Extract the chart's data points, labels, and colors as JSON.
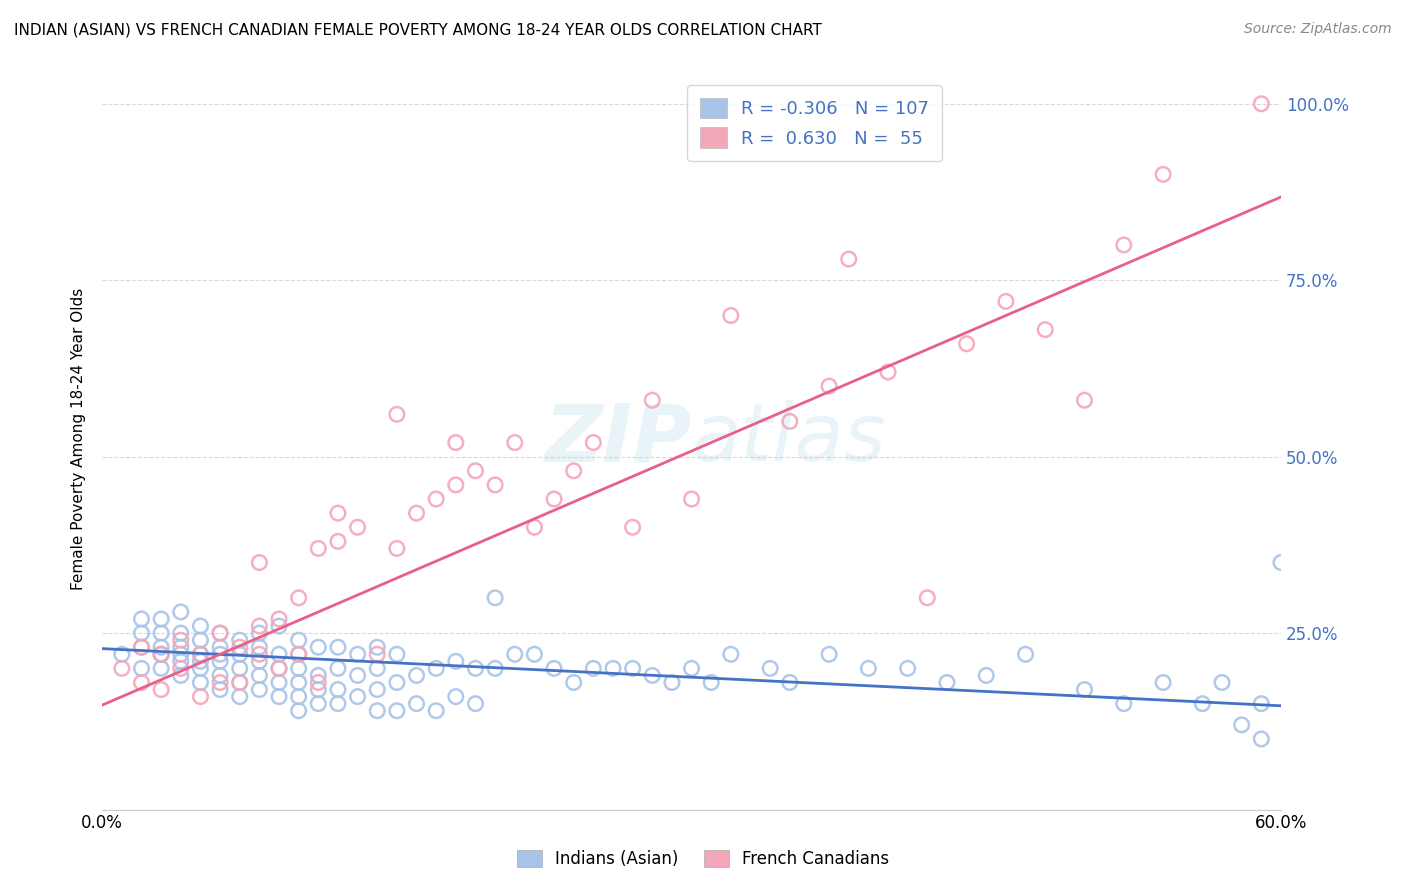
{
  "title": "INDIAN (ASIAN) VS FRENCH CANADIAN FEMALE POVERTY AMONG 18-24 YEAR OLDS CORRELATION CHART",
  "source": "Source: ZipAtlas.com",
  "ylabel": "Female Poverty Among 18-24 Year Olds",
  "xlim": [
    0.0,
    0.6
  ],
  "ylim": [
    0.0,
    1.05
  ],
  "blue_color": "#a8c4e8",
  "pink_color": "#f4a7b9",
  "blue_line_color": "#4472c4",
  "pink_line_color": "#e8608a",
  "legend_r_blue": "-0.306",
  "legend_n_blue": "107",
  "legend_r_pink": "0.630",
  "legend_n_pink": "55",
  "watermark": "ZIPatlas",
  "blue_intercept": 0.228,
  "blue_slope": -0.135,
  "pink_intercept": 0.148,
  "pink_slope": 1.2,
  "blue_scatter_x": [
    0.01,
    0.02,
    0.02,
    0.02,
    0.02,
    0.03,
    0.03,
    0.03,
    0.03,
    0.03,
    0.03,
    0.04,
    0.04,
    0.04,
    0.04,
    0.04,
    0.04,
    0.05,
    0.05,
    0.05,
    0.05,
    0.05,
    0.05,
    0.06,
    0.06,
    0.06,
    0.06,
    0.06,
    0.06,
    0.07,
    0.07,
    0.07,
    0.07,
    0.07,
    0.08,
    0.08,
    0.08,
    0.08,
    0.08,
    0.09,
    0.09,
    0.09,
    0.09,
    0.09,
    0.1,
    0.1,
    0.1,
    0.1,
    0.1,
    0.1,
    0.11,
    0.11,
    0.11,
    0.11,
    0.12,
    0.12,
    0.12,
    0.12,
    0.13,
    0.13,
    0.13,
    0.14,
    0.14,
    0.14,
    0.14,
    0.15,
    0.15,
    0.15,
    0.16,
    0.16,
    0.17,
    0.17,
    0.18,
    0.18,
    0.19,
    0.19,
    0.2,
    0.2,
    0.21,
    0.22,
    0.23,
    0.24,
    0.25,
    0.26,
    0.27,
    0.28,
    0.29,
    0.3,
    0.31,
    0.32,
    0.34,
    0.35,
    0.37,
    0.39,
    0.41,
    0.43,
    0.45,
    0.47,
    0.5,
    0.52,
    0.54,
    0.56,
    0.57,
    0.58,
    0.59,
    0.59,
    0.6
  ],
  "blue_scatter_y": [
    0.22,
    0.2,
    0.23,
    0.25,
    0.27,
    0.2,
    0.22,
    0.23,
    0.25,
    0.27,
    0.22,
    0.19,
    0.21,
    0.23,
    0.25,
    0.28,
    0.22,
    0.18,
    0.2,
    0.22,
    0.24,
    0.26,
    0.21,
    0.17,
    0.19,
    0.21,
    0.23,
    0.25,
    0.22,
    0.16,
    0.18,
    0.2,
    0.22,
    0.24,
    0.17,
    0.19,
    0.21,
    0.23,
    0.25,
    0.16,
    0.18,
    0.2,
    0.22,
    0.26,
    0.14,
    0.16,
    0.18,
    0.2,
    0.22,
    0.24,
    0.15,
    0.17,
    0.19,
    0.23,
    0.15,
    0.17,
    0.2,
    0.23,
    0.16,
    0.19,
    0.22,
    0.14,
    0.17,
    0.2,
    0.23,
    0.14,
    0.18,
    0.22,
    0.15,
    0.19,
    0.14,
    0.2,
    0.16,
    0.21,
    0.15,
    0.2,
    0.2,
    0.3,
    0.22,
    0.22,
    0.2,
    0.18,
    0.2,
    0.2,
    0.2,
    0.19,
    0.18,
    0.2,
    0.18,
    0.22,
    0.2,
    0.18,
    0.22,
    0.2,
    0.2,
    0.18,
    0.19,
    0.22,
    0.17,
    0.15,
    0.18,
    0.15,
    0.18,
    0.12,
    0.1,
    0.15,
    0.35
  ],
  "pink_scatter_x": [
    0.01,
    0.02,
    0.02,
    0.03,
    0.03,
    0.04,
    0.04,
    0.05,
    0.05,
    0.06,
    0.06,
    0.07,
    0.07,
    0.08,
    0.08,
    0.08,
    0.09,
    0.09,
    0.1,
    0.1,
    0.11,
    0.11,
    0.12,
    0.12,
    0.13,
    0.14,
    0.15,
    0.15,
    0.16,
    0.17,
    0.18,
    0.18,
    0.19,
    0.2,
    0.21,
    0.22,
    0.23,
    0.24,
    0.25,
    0.27,
    0.28,
    0.3,
    0.32,
    0.35,
    0.37,
    0.38,
    0.4,
    0.42,
    0.44,
    0.46,
    0.48,
    0.5,
    0.52,
    0.54,
    0.59
  ],
  "pink_scatter_y": [
    0.2,
    0.18,
    0.23,
    0.17,
    0.22,
    0.2,
    0.24,
    0.16,
    0.22,
    0.18,
    0.25,
    0.18,
    0.23,
    0.22,
    0.26,
    0.35,
    0.2,
    0.27,
    0.22,
    0.3,
    0.18,
    0.37,
    0.38,
    0.42,
    0.4,
    0.22,
    0.37,
    0.56,
    0.42,
    0.44,
    0.46,
    0.52,
    0.48,
    0.46,
    0.52,
    0.4,
    0.44,
    0.48,
    0.52,
    0.4,
    0.58,
    0.44,
    0.7,
    0.55,
    0.6,
    0.78,
    0.62,
    0.3,
    0.66,
    0.72,
    0.68,
    0.58,
    0.8,
    0.9,
    1.0
  ]
}
